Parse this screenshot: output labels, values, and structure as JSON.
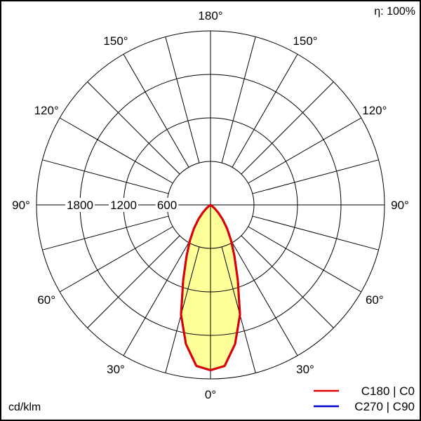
{
  "chart_data": {
    "type": "polar",
    "efficiency_label": "η: 100%",
    "unit_label": "cd/klm",
    "radial_ticks": [
      600,
      1200,
      1800,
      2400
    ],
    "radial_tick_labels": [
      "600",
      "1200",
      "1800"
    ],
    "angle_labels": [
      "0°",
      "30°",
      "60°",
      "90°",
      "120°",
      "150°",
      "180°"
    ],
    "grid": true,
    "legend_position": "bottom-right",
    "angles_deg": [
      0,
      5,
      10,
      15,
      20,
      25,
      30,
      35,
      40,
      45,
      50,
      55,
      60,
      90,
      180
    ],
    "series": [
      {
        "name": "C180 | C0",
        "color": "#e00000",
        "values": [
          2280,
          2230,
          1950,
          1570,
          1100,
          780,
          570,
          400,
          260,
          150,
          70,
          20,
          0,
          0,
          0
        ]
      },
      {
        "name": "C270 | C90",
        "color": "#0000cc",
        "values": [
          2280,
          2230,
          1950,
          1570,
          1100,
          780,
          570,
          400,
          260,
          150,
          70,
          20,
          0,
          0,
          0
        ]
      }
    ],
    "fill_color": "#ffff99"
  }
}
